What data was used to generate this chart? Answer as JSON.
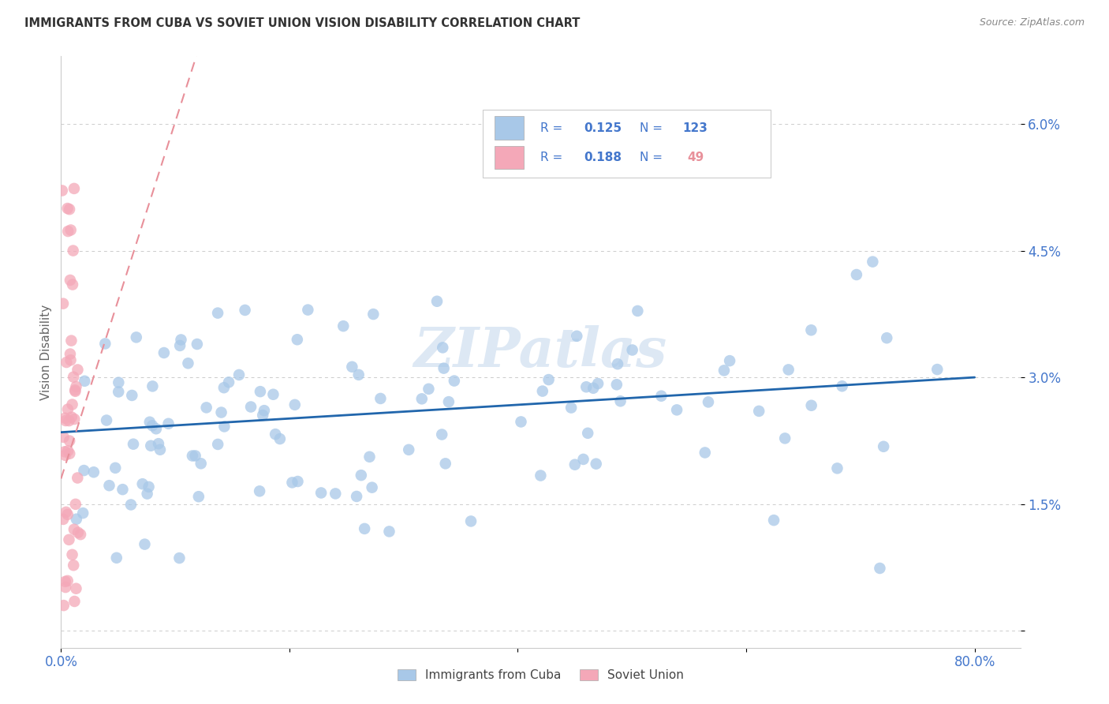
{
  "title": "IMMIGRANTS FROM CUBA VS SOVIET UNION VISION DISABILITY CORRELATION CHART",
  "source": "Source: ZipAtlas.com",
  "ylabel": "Vision Disability",
  "watermark": "ZIPatlas",
  "xlim": [
    0.0,
    0.84
  ],
  "ylim": [
    -0.002,
    0.068
  ],
  "xticks": [
    0.0,
    0.2,
    0.4,
    0.6,
    0.8
  ],
  "xticklabels": [
    "0.0%",
    "",
    "",
    "",
    "80.0%"
  ],
  "yticks": [
    0.0,
    0.015,
    0.03,
    0.045,
    0.06
  ],
  "yticklabels": [
    "",
    "1.5%",
    "3.0%",
    "4.5%",
    "6.0%"
  ],
  "cuba_R": 0.125,
  "cuba_N": 123,
  "soviet_R": 0.188,
  "soviet_N": 49,
  "legend_label_cuba": "Immigrants from Cuba",
  "legend_label_soviet": "Soviet Union",
  "blue_scatter_color": "#a8c8e8",
  "pink_scatter_color": "#f4a8b8",
  "blue_line_color": "#2166ac",
  "pink_line_color": "#e8909a",
  "text_blue_color": "#4477cc",
  "pink_text_color": "#e8909a",
  "title_color": "#333333",
  "watermark_color": "#dde8f4",
  "background_color": "#ffffff",
  "grid_color": "#cccccc",
  "spine_color": "#cccccc"
}
